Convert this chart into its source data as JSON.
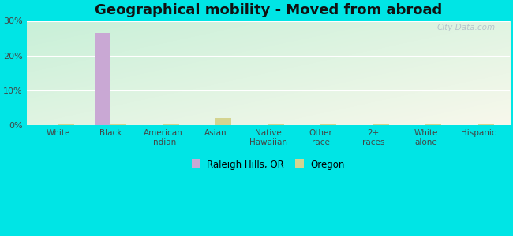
{
  "title": "Geographical mobility - Moved from abroad",
  "categories": [
    "White",
    "Black",
    "American\nIndian",
    "Asian",
    "Native\nHawaiian",
    "Other\nrace",
    "2+\nraces",
    "White\nalone",
    "Hispanic"
  ],
  "raleigh_values": [
    0.0,
    26.5,
    0.0,
    0.0,
    0.0,
    0.0,
    0.0,
    0.0,
    0.0
  ],
  "oregon_values": [
    0.4,
    0.4,
    0.4,
    2.0,
    0.4,
    0.5,
    0.4,
    0.4,
    0.5
  ],
  "raleigh_color": "#c9a8d4",
  "oregon_color": "#d4d490",
  "outer_background": "#00e5e5",
  "ylim": [
    0,
    30
  ],
  "yticks": [
    0,
    10,
    20,
    30
  ],
  "ytick_labels": [
    "0%",
    "10%",
    "20%",
    "30%"
  ],
  "bar_width": 0.3,
  "title_fontsize": 13,
  "legend_label_raleigh": "Raleigh Hills, OR",
  "legend_label_oregon": "Oregon",
  "watermark": "City-Data.com"
}
